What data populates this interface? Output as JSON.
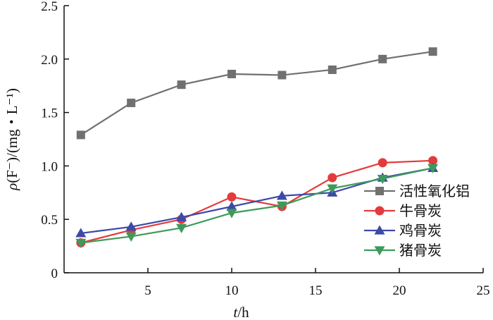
{
  "chart_data": {
    "type": "line",
    "title": "",
    "xlabel": "t/h",
    "ylabel": "ρ(F⁻)/(mg・L⁻¹)",
    "xlabel_parts": {
      "var": "t",
      "unit": "/h"
    },
    "ylabel_parts": {
      "var": "ρ",
      "rest": "(F⁻)/(mg・L⁻¹)"
    },
    "xlim": [
      0,
      25
    ],
    "ylim": [
      0,
      2.5
    ],
    "xticks": [
      5,
      10,
      15,
      20,
      25
    ],
    "xtick_labels": [
      "5",
      "10",
      "15",
      "20",
      "25"
    ],
    "yticks": [
      0,
      0.5,
      1.0,
      1.5,
      2.0,
      2.5
    ],
    "ytick_labels": [
      "0",
      "0.5",
      "1.0",
      "1.5",
      "2.0",
      "2.5"
    ],
    "grid": false,
    "legend_position": "right",
    "x": [
      1,
      4,
      7,
      10,
      13,
      16,
      19,
      22
    ],
    "series": [
      {
        "name": "活性氧化铝",
        "color": "#707070",
        "marker": "square",
        "values": [
          1.29,
          1.59,
          1.76,
          1.86,
          1.85,
          1.9,
          2.0,
          2.07
        ]
      },
      {
        "name": "牛骨炭",
        "color": "#e33b3b",
        "marker": "circle",
        "values": [
          0.28,
          0.4,
          0.5,
          0.71,
          0.62,
          0.89,
          1.03,
          1.05
        ]
      },
      {
        "name": "鸡骨炭",
        "color": "#3b4aa8",
        "marker": "triangle-up",
        "values": [
          0.37,
          0.43,
          0.52,
          0.62,
          0.72,
          0.75,
          0.89,
          0.98
        ]
      },
      {
        "name": "猪骨炭",
        "color": "#3d9a5a",
        "marker": "triangle-down",
        "values": [
          0.28,
          0.34,
          0.42,
          0.56,
          0.63,
          0.79,
          0.88,
          0.98
        ]
      }
    ]
  }
}
